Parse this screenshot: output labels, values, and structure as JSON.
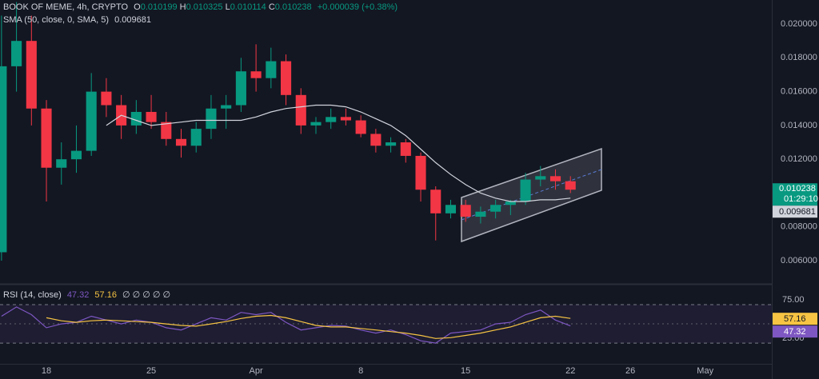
{
  "chart_data": [
    {
      "type": "candlestick",
      "symbol": "BOOK OF MEME, 4h, CRYPTO",
      "ohlc": [
        {
          "label": "O",
          "value": "0.010199"
        },
        {
          "label": "H",
          "value": "0.010325"
        },
        {
          "label": "L",
          "value": "0.010114"
        },
        {
          "label": "C",
          "value": "0.010238"
        }
      ],
      "change": "+0.000039 (+0.38%)",
      "last_price": "0.010238",
      "countdown": "01:29:10",
      "up_color": "#089981",
      "down_color": "#f23645",
      "x": [
        15,
        16,
        17,
        18,
        19,
        20,
        21,
        22,
        23,
        24,
        25,
        26,
        27,
        28,
        29,
        30,
        31,
        32,
        33,
        34,
        35,
        36,
        37,
        38,
        39,
        40,
        41,
        42,
        43,
        44,
        45,
        46,
        47,
        48,
        49,
        50,
        51,
        52,
        53
      ],
      "open": [
        0.0065,
        0.0175,
        0.019,
        0.015,
        0.0115,
        0.012,
        0.0125,
        0.016,
        0.0152,
        0.014,
        0.0148,
        0.0142,
        0.0132,
        0.0128,
        0.0138,
        0.015,
        0.0152,
        0.0172,
        0.0168,
        0.0178,
        0.0158,
        0.014,
        0.0142,
        0.0145,
        0.0143,
        0.0135,
        0.0128,
        0.013,
        0.0122,
        0.0102,
        0.0088,
        0.0093,
        0.0086,
        0.0089,
        0.0093,
        0.0095,
        0.0108,
        0.011,
        0.0107
      ],
      "high": [
        0.0205,
        0.0213,
        0.0205,
        0.0155,
        0.013,
        0.014,
        0.0171,
        0.0168,
        0.0158,
        0.0155,
        0.0158,
        0.0148,
        0.0138,
        0.0142,
        0.0158,
        0.0158,
        0.018,
        0.0188,
        0.0186,
        0.0182,
        0.0162,
        0.0145,
        0.015,
        0.015,
        0.0146,
        0.0138,
        0.0133,
        0.0132,
        0.0124,
        0.0104,
        0.0096,
        0.0096,
        0.0092,
        0.0096,
        0.0096,
        0.0112,
        0.0116,
        0.0114,
        0.011
      ],
      "low": [
        0.006,
        0.016,
        0.014,
        0.0095,
        0.0105,
        0.0112,
        0.0122,
        0.0145,
        0.0132,
        0.0135,
        0.0138,
        0.0128,
        0.0121,
        0.0124,
        0.0132,
        0.0138,
        0.0148,
        0.016,
        0.0162,
        0.0152,
        0.0135,
        0.0135,
        0.0138,
        0.014,
        0.0133,
        0.0124,
        0.0124,
        0.0118,
        0.0095,
        0.0072,
        0.0085,
        0.0083,
        0.0082,
        0.0085,
        0.0087,
        0.0093,
        0.0104,
        0.0102,
        0.01
      ],
      "close": [
        0.0175,
        0.019,
        0.015,
        0.0115,
        0.012,
        0.0125,
        0.016,
        0.0152,
        0.014,
        0.0148,
        0.0142,
        0.0132,
        0.0128,
        0.0138,
        0.015,
        0.0152,
        0.0172,
        0.0168,
        0.0178,
        0.0158,
        0.014,
        0.0142,
        0.0145,
        0.0143,
        0.0135,
        0.0128,
        0.013,
        0.0122,
        0.0102,
        0.0088,
        0.0093,
        0.0086,
        0.0089,
        0.0093,
        0.0095,
        0.0108,
        0.011,
        0.0107,
        0.0102
      ],
      "sma": {
        "name": "SMA (50, close, 0, SMA, 5)",
        "value_label": "0.009681",
        "color": "#d1d4dc",
        "values": [
          null,
          null,
          null,
          null,
          null,
          null,
          null,
          0.014,
          0.0146,
          0.0143,
          0.014,
          0.0141,
          0.0142,
          0.0143,
          0.0143,
          0.0143,
          0.0143,
          0.0145,
          0.0148,
          0.015,
          0.0151,
          0.0152,
          0.0152,
          0.0151,
          0.0148,
          0.0144,
          0.014,
          0.0134,
          0.0126,
          0.0118,
          0.0111,
          0.0105,
          0.01,
          0.0097,
          0.0095,
          0.0095,
          0.0096,
          0.0096,
          0.0097
        ]
      },
      "xlim": [
        14.9,
        66.45
      ],
      "ylim": [
        0.00463,
        0.02142
      ],
      "yticks": [
        {
          "value": 0.02,
          "label": "0.020000"
        },
        {
          "value": 0.018,
          "label": "0.018000"
        },
        {
          "value": 0.016,
          "label": "0.016000"
        },
        {
          "value": 0.014,
          "label": "0.014000"
        },
        {
          "value": 0.012,
          "label": "0.012000"
        },
        {
          "value": 0.01,
          "label": "0.010000"
        },
        {
          "value": 0.008,
          "label": "0.008000"
        },
        {
          "value": 0.006,
          "label": "0.006000"
        }
      ],
      "xticks": [
        {
          "value": 18,
          "label": "18"
        },
        {
          "value": 25,
          "label": "25"
        },
        {
          "value": 32,
          "label": "Apr"
        },
        {
          "value": 39,
          "label": "8"
        },
        {
          "value": 46,
          "label": "15"
        },
        {
          "value": 53,
          "label": "22"
        },
        {
          "value": 57,
          "label": "26"
        },
        {
          "value": 62,
          "label": "May"
        }
      ],
      "grid": false
    },
    {
      "type": "line",
      "title": "RSI (14, close)",
      "rsi_label": "47.32",
      "ma_label": "57.16",
      "extra": "∅ ∅ ∅ ∅ ∅",
      "x": [
        15,
        16,
        17,
        18,
        19,
        20,
        21,
        22,
        23,
        24,
        25,
        26,
        27,
        28,
        29,
        30,
        31,
        32,
        33,
        34,
        35,
        36,
        37,
        38,
        39,
        40,
        41,
        42,
        43,
        44,
        45,
        46,
        47,
        48,
        49,
        50,
        51,
        52,
        53
      ],
      "series": [
        {
          "color": "#7e57c2",
          "values": [
            60,
            72,
            62,
            45,
            50,
            52,
            60,
            55,
            50,
            55,
            52,
            45,
            42,
            50,
            58,
            55,
            65,
            62,
            65,
            52,
            42,
            45,
            48,
            47,
            42,
            38,
            42,
            36,
            28,
            25,
            38,
            40,
            42,
            50,
            52,
            62,
            68,
            55,
            47.32
          ]
        },
        {
          "color": "#f7c443",
          "values": [
            null,
            null,
            null,
            58,
            54,
            52,
            54,
            55,
            54,
            53,
            52,
            50,
            48,
            47,
            50,
            53,
            57,
            60,
            61,
            58,
            53,
            48,
            46,
            46,
            44,
            42,
            40,
            38,
            35,
            31,
            32,
            35,
            38,
            42,
            46,
            52,
            58,
            60,
            57.16
          ]
        }
      ],
      "xlim": [
        14.9,
        66.45
      ],
      "ylim": [
        -2,
        99
      ],
      "yticks": [
        {
          "value": 75,
          "label": "75.00"
        },
        {
          "value": 25,
          "label": "25.00"
        }
      ],
      "midline": 50
    }
  ]
}
